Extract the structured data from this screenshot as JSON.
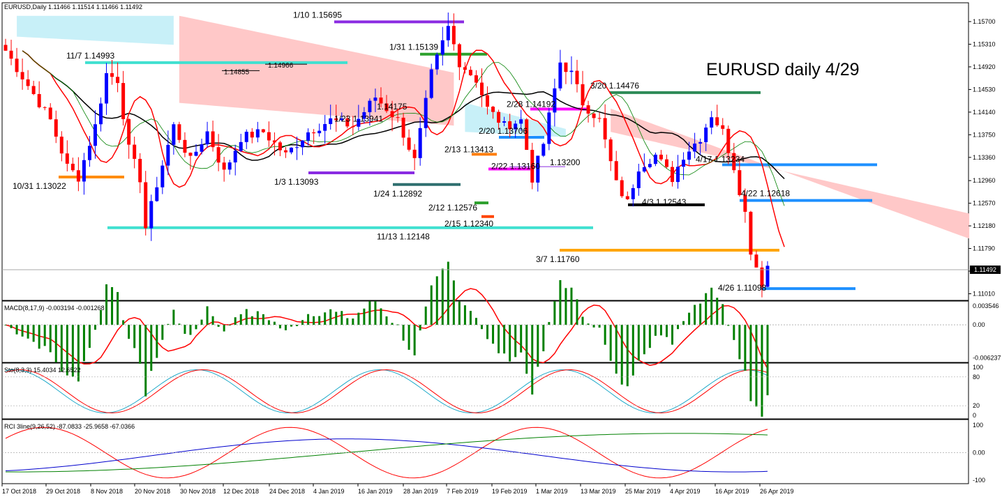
{
  "chart_data": [
    {
      "type": "candlestick",
      "header": "EURUSD,Daily  1.11466 1.11514 1.11466 1.11492",
      "title": "EURUSD daily 4/29",
      "price_axis": [
        "1.15700",
        "1.15310",
        "1.14920",
        "1.14530",
        "1.14140",
        "1.13750",
        "1.13360",
        "1.12960",
        "1.12570",
        "1.12180",
        "1.11790",
        "1.11400",
        "1.11010"
      ],
      "current_price_label": "1.11492",
      "current_price": 1.11492,
      "ylim": [
        1.1092,
        1.16
      ],
      "x_axis": [
        "17 Oct 2018",
        "29 Oct 2018",
        "8 Nov 2018",
        "20 Nov 2018",
        "30 Nov 2018",
        "12 Dec 2018",
        "24 Dec 2018",
        "4 Jan 2019",
        "16 Jan 2019",
        "28 Jan 2019",
        "7 Feb 2019",
        "19 Feb 2019",
        "1 Mar 2019",
        "13 Mar 2019",
        "25 Mar 2019",
        "4 Apr 2019",
        "16 Apr 2019",
        "26 Apr 2019"
      ],
      "annotations": [
        {
          "text": "1/10 1.15695",
          "price": 1.15695,
          "color": "#8a2be2"
        },
        {
          "text": "11/7 1.14993",
          "price": 1.14993,
          "color": "#40e0d0"
        },
        {
          "text": "1/31 1.15139",
          "price": 1.15139,
          "color": "#2ca02c"
        },
        {
          "text": "1.14855",
          "price": 1.14855,
          "color": "#000000"
        },
        {
          "text": "1.14966",
          "price": 1.14966,
          "color": "#000000"
        },
        {
          "text": "3/20 1.14476",
          "price": 1.14476,
          "color": "#2e8b57"
        },
        {
          "text": "2/28 1.14192",
          "price": 1.14192,
          "color": "#ff00ff"
        },
        {
          "text": "1.14175",
          "price": 1.14175,
          "color": "#000000"
        },
        {
          "text": "1/23 1.13941",
          "price": 1.13941,
          "color": "#000000"
        },
        {
          "text": "2/20 1.13706",
          "price": 1.13706,
          "color": "#1e90ff"
        },
        {
          "text": "2/13 1.13413",
          "price": 1.13413,
          "color": "#ff7f0e"
        },
        {
          "text": "4/17 1.13234",
          "price": 1.13234,
          "color": "#1e90ff"
        },
        {
          "text": "1.13200",
          "price": 1.132,
          "color": "#8a2be2"
        },
        {
          "text": "2/22 1.13160",
          "price": 1.1316,
          "color": "#ff00ff"
        },
        {
          "text": "1/3 1.13093",
          "price": 1.13093,
          "color": "#8a2be2"
        },
        {
          "text": "10/31 1.13022",
          "price": 1.13022,
          "color": "#ff8c00"
        },
        {
          "text": "1/24 1.12892",
          "price": 1.12892,
          "color": "#2f6f6f"
        },
        {
          "text": "4/22 1.12618",
          "price": 1.12618,
          "color": "#1e90ff"
        },
        {
          "text": "2/12 1.12576",
          "price": 1.12576,
          "color": "#2ca02c"
        },
        {
          "text": "4/3 1.12543",
          "price": 1.12543,
          "color": "#000000"
        },
        {
          "text": "2/15 1.12340",
          "price": 1.1234,
          "color": "#ff4500"
        },
        {
          "text": "11/13 1.12148",
          "price": 1.12148,
          "color": "#40e0d0"
        },
        {
          "text": "3/7 1.11760",
          "price": 1.1176,
          "color": "#ffa500"
        },
        {
          "text": "4/26 1.11098",
          "price": 1.11098,
          "color": "#1e90ff"
        }
      ],
      "colors": {
        "up": "#0000ff",
        "down": "#ff0000",
        "cloud_bear": "#ffc8c8",
        "cloud_bull": "#c8f0f8",
        "kijun": "#000000",
        "tenkan": "#ff0000",
        "chikou": "#008000"
      }
    },
    {
      "type": "macd",
      "header": "MACD(8,17,9) -0.003194 -0.001268",
      "axis": [
        "0.003546",
        "0.00",
        "-0.006237"
      ],
      "ylim": [
        -0.0068,
        0.0042
      ],
      "colors": {
        "histogram": "#008000",
        "signal": "#ff0000"
      }
    },
    {
      "type": "stochastic",
      "header": "Sto(8,3,3) 15.4034 12.6522",
      "axis": [
        "100",
        "80",
        "20",
        "0"
      ],
      "ylim": [
        0,
        100
      ],
      "colors": {
        "main": "#1ca8c8",
        "signal": "#ff0000"
      }
    },
    {
      "type": "rci",
      "header": "RCI 3line(9,26,52) -87.0833 -25.9658 -67.0366",
      "axis": [
        "100",
        "0.00",
        "-100"
      ],
      "ylim": [
        -100,
        100
      ],
      "colors": {
        "short": "#ff0000",
        "middle": "#0000cd",
        "long": "#008000"
      }
    }
  ]
}
